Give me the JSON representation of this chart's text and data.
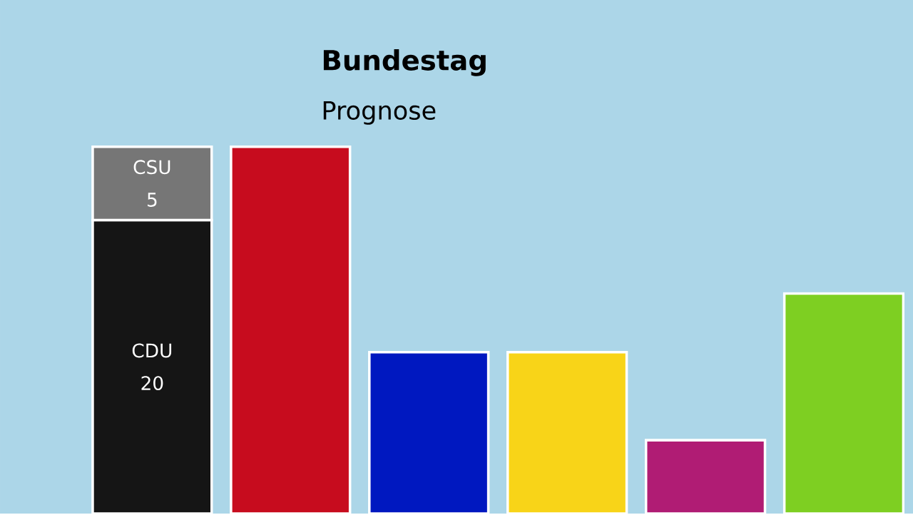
{
  "chart_data": {
    "type": "bar",
    "title": "Bundestag",
    "subtitle": "Prognose",
    "stacked": true,
    "categories": [
      null,
      null,
      null,
      null,
      null,
      null
    ],
    "series": [
      {
        "name": "CDU",
        "color": "#151515",
        "values": [
          20,
          null,
          null,
          null,
          null,
          null
        ],
        "value_labels": [
          "20",
          null,
          null,
          null,
          null,
          null
        ]
      },
      {
        "name": "CSU",
        "color": "#767676",
        "values": [
          5,
          null,
          null,
          null,
          null,
          null
        ],
        "value_labels": [
          "5",
          null,
          null,
          null,
          null,
          null
        ]
      },
      {
        "colors": [
          "#151515",
          "#c70c1e",
          "#0018c0",
          "#f8d418",
          "#b01c74",
          "#7ecf22"
        ],
        "values": [
          null,
          25,
          11,
          11,
          5,
          15
        ]
      }
    ],
    "ylim": [
      0,
      35
    ]
  }
}
